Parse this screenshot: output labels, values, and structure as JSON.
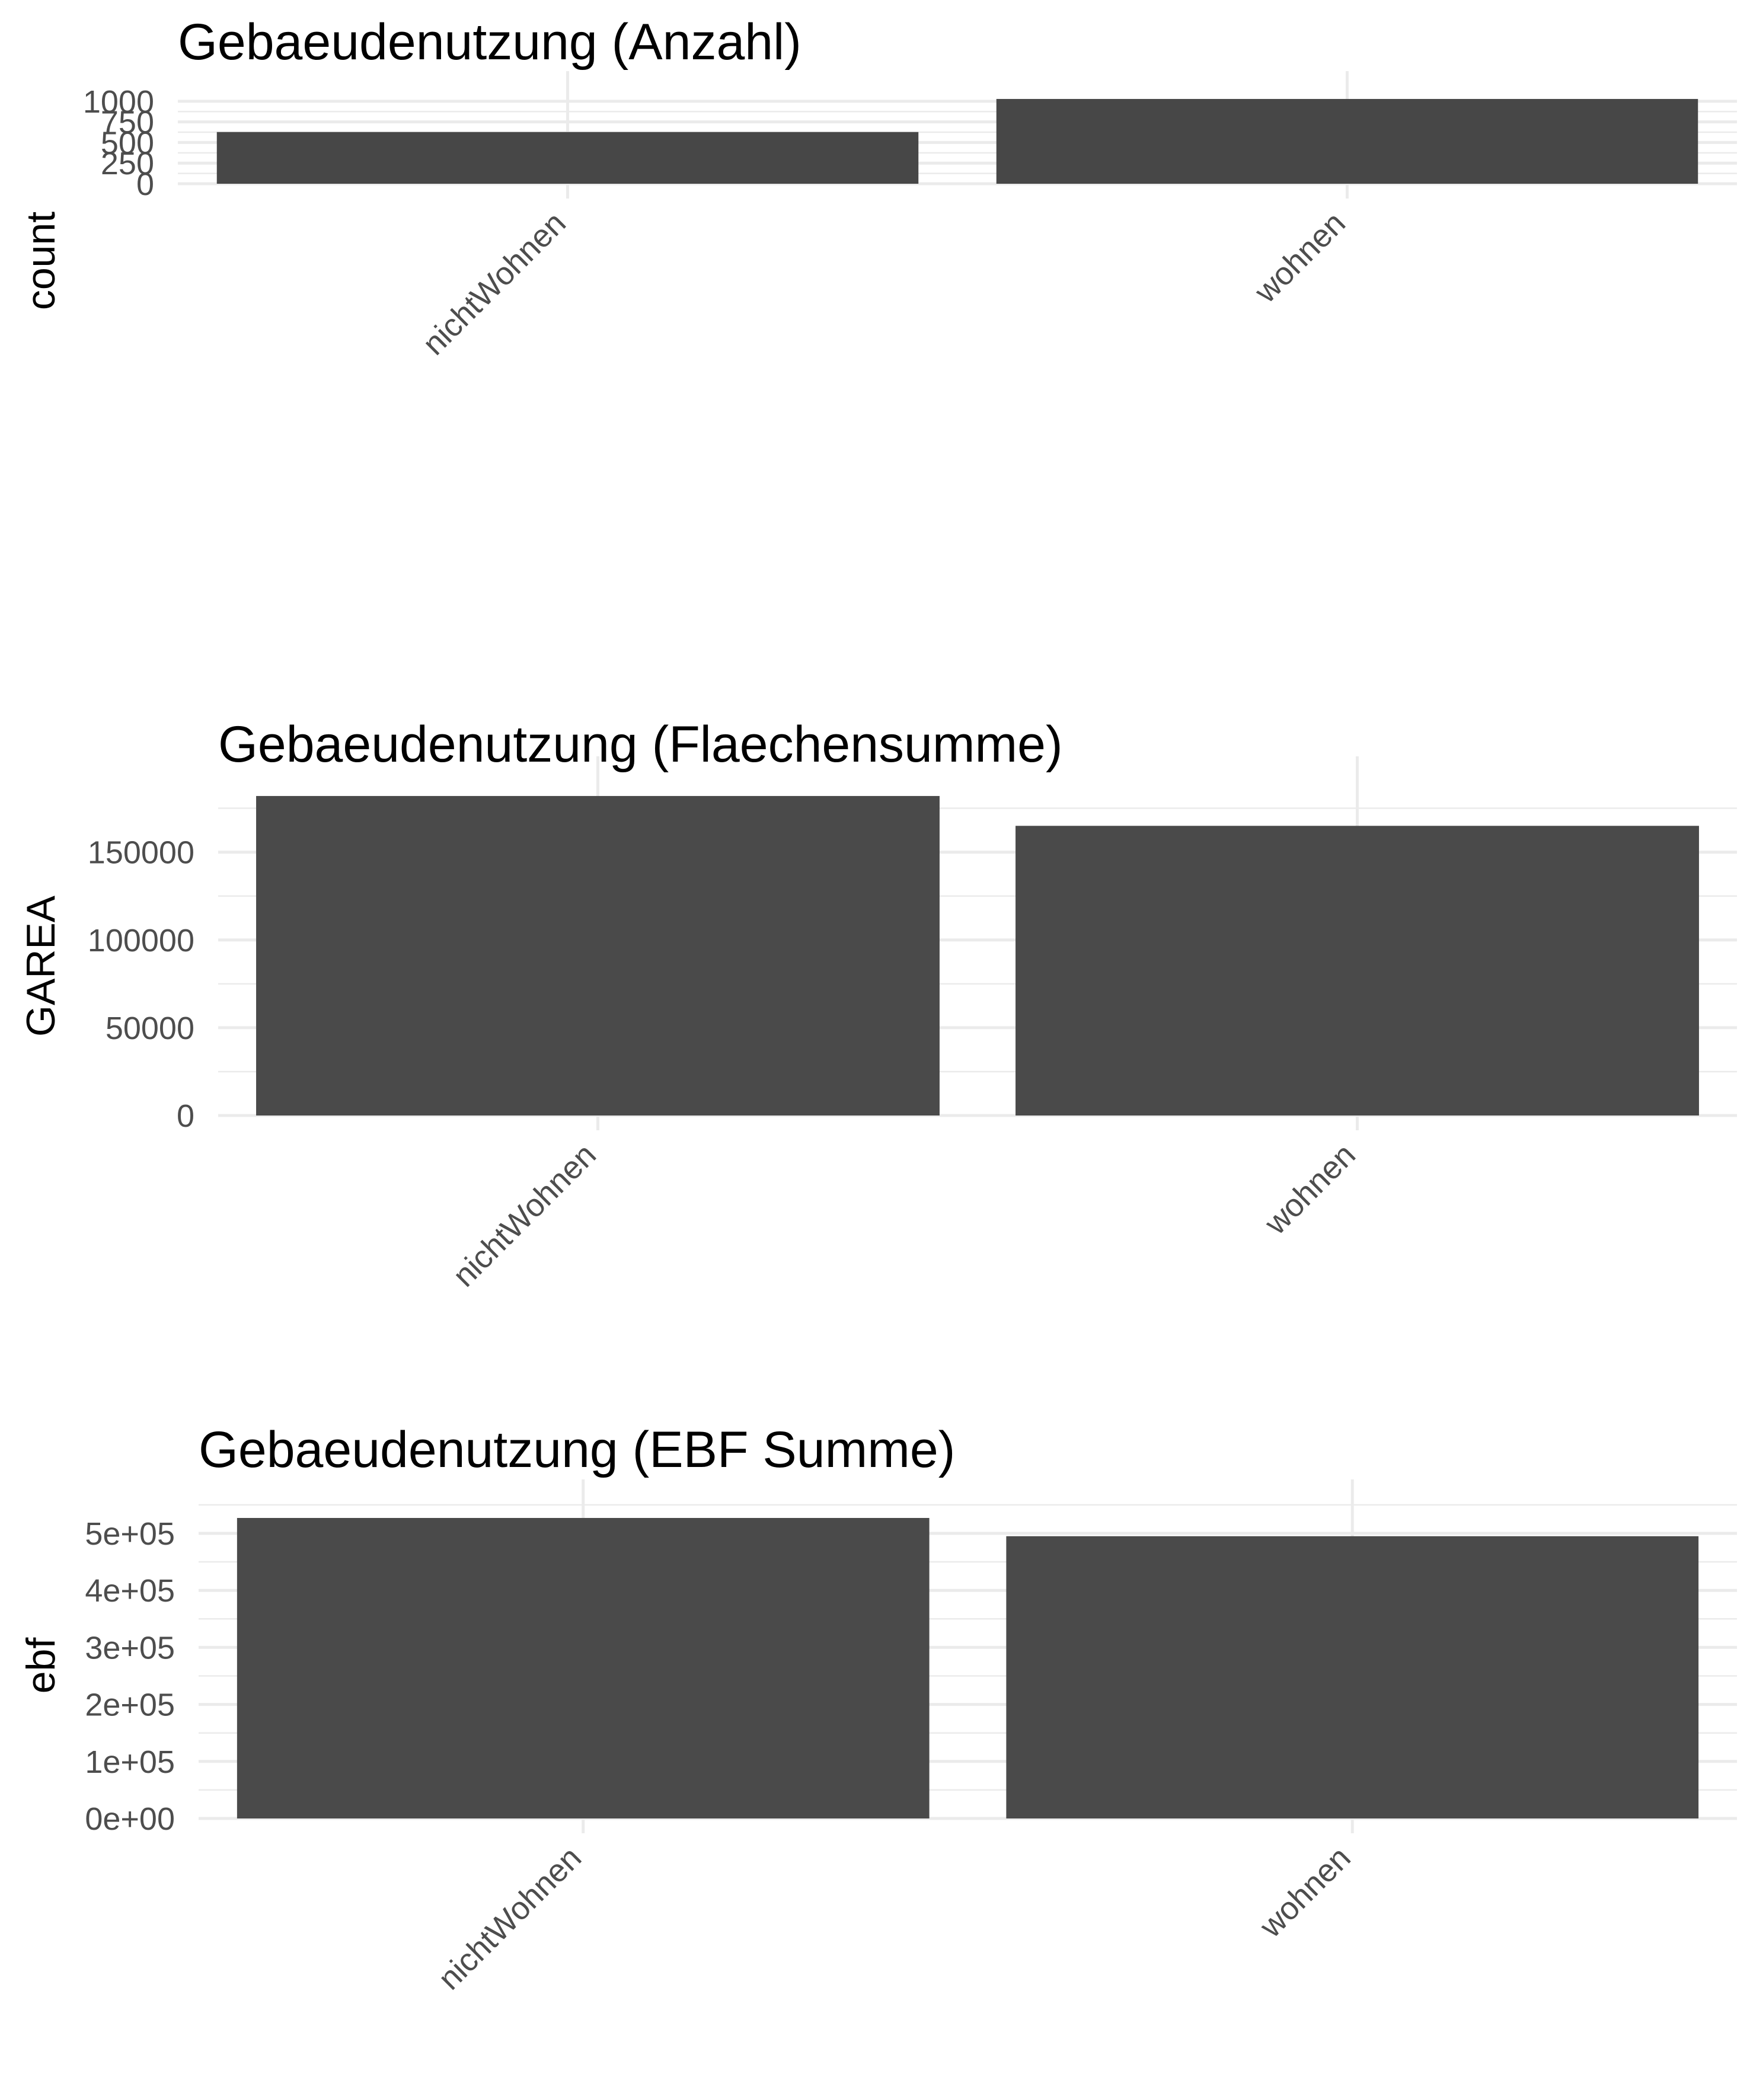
{
  "chart_data": [
    {
      "type": "bar",
      "title": "Gebaeudenutzung (Anzahl)",
      "xlabel": "",
      "ylabel": "count",
      "categories": [
        "nichtWohnen",
        "wohnen"
      ],
      "values": [
        627,
        1028
      ],
      "ylim": [
        0,
        1078
      ],
      "yticks": [
        0,
        250,
        500,
        750,
        1000
      ],
      "ytick_labels": [
        "0",
        "250",
        "500",
        "750",
        "1000"
      ],
      "grid": true,
      "legend": "none",
      "bar_color": "#474747"
    },
    {
      "type": "bar",
      "title": "Gebaeudenutzung (Flaechensumme)",
      "xlabel": "",
      "ylabel": "GAREA",
      "categories": [
        "nichtWohnen",
        "wohnen"
      ],
      "values": [
        182000,
        165000
      ],
      "ylim": [
        0,
        191100
      ],
      "yticks": [
        0,
        50000,
        100000,
        150000
      ],
      "ytick_labels": [
        "0",
        "50000",
        "100000",
        "150000"
      ],
      "grid": true,
      "legend": "none",
      "bar_color": "#4a4a4a"
    },
    {
      "type": "bar",
      "title": "Gebaeudenutzung (EBF Summe)",
      "xlabel": "",
      "ylabel": "ebf",
      "categories": [
        "nichtWohnen",
        "wohnen"
      ],
      "values": [
        527000,
        495000
      ],
      "ylim": [
        0,
        553000
      ],
      "yticks": [
        0,
        100000,
        200000,
        300000,
        400000,
        500000
      ],
      "ytick_labels": [
        "0e+00",
        "1e+05",
        "2e+05",
        "3e+05",
        "4e+05",
        "5e+05"
      ],
      "grid": true,
      "legend": "none",
      "bar_color": "#4a4a4a"
    }
  ]
}
